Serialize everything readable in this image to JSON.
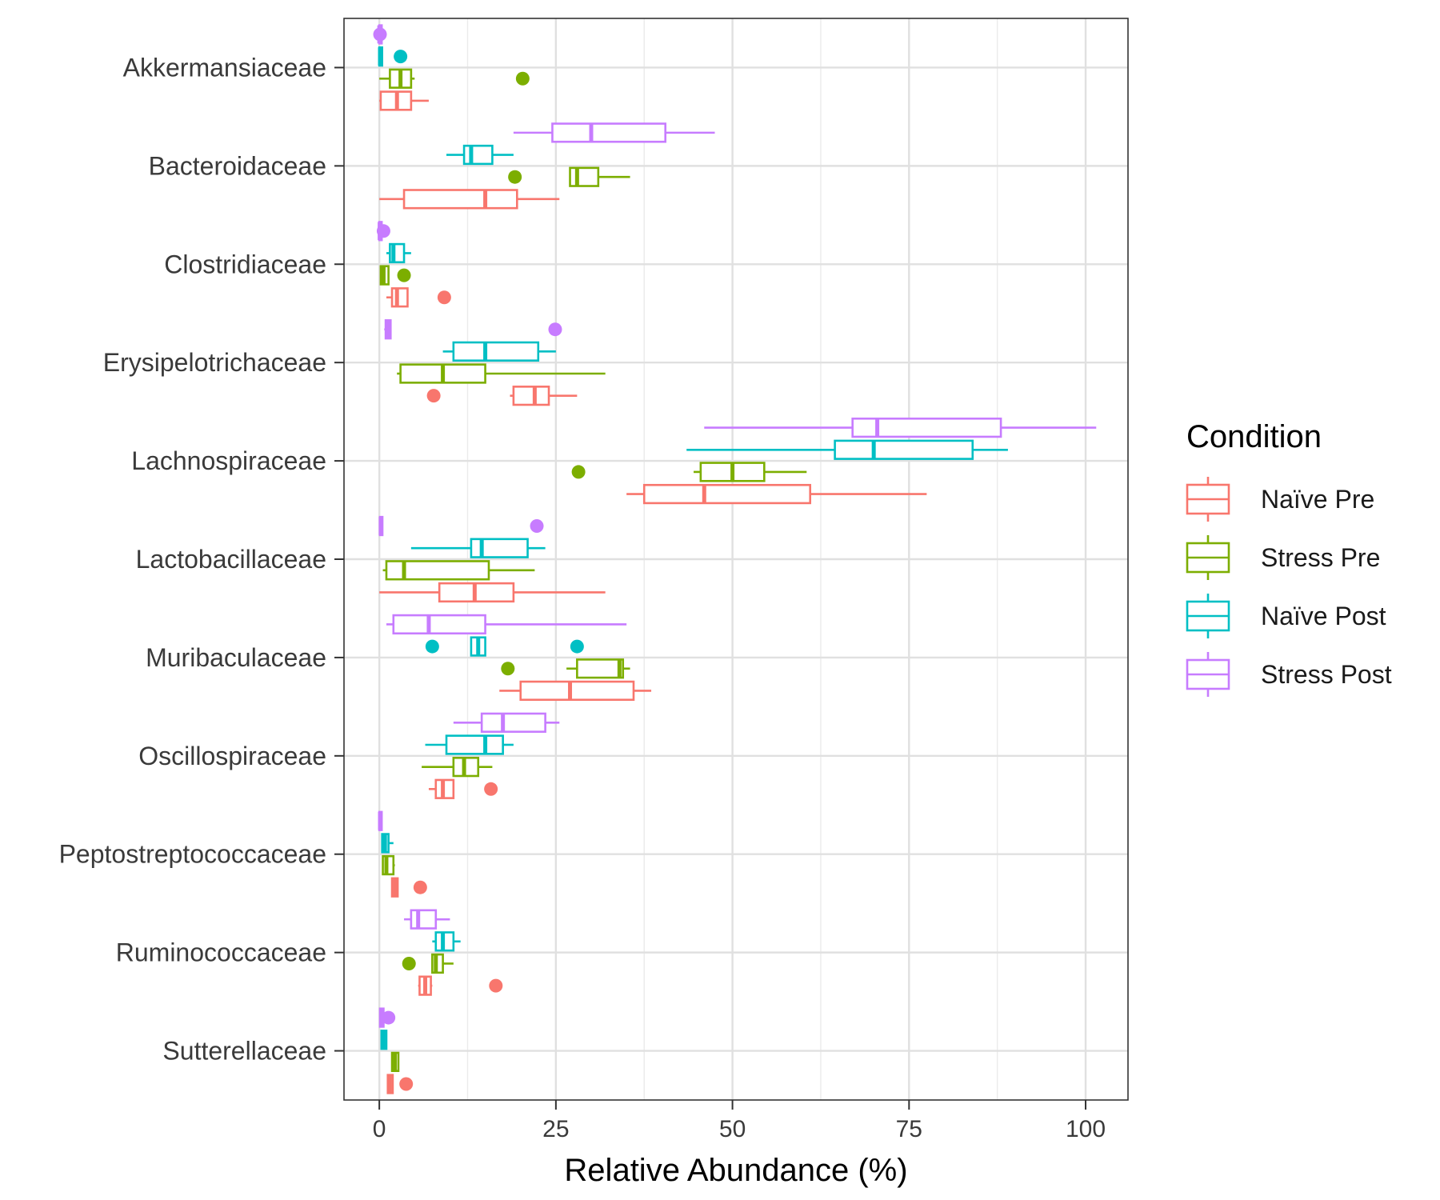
{
  "chart_data": {
    "type": "boxplot",
    "orientation": "horizontal",
    "xlabel": "Relative Abundance (%)",
    "ylabel": "",
    "xlim": [
      -5,
      106
    ],
    "xticks": [
      0,
      25,
      50,
      75,
      100
    ],
    "grid": true,
    "legend": {
      "title": "Condition",
      "position": "right"
    },
    "categories": [
      "Akkermansiaceae",
      "Bacteroidaceae",
      "Clostridiaceae",
      "Erysipelotrichaceae",
      "Lachnospiraceae",
      "Lactobacillaceae",
      "Muribaculaceae",
      "Oscillospiraceae",
      "Peptostreptococcaceae",
      "Ruminococcaceae",
      "Sutterellaceae"
    ],
    "series": [
      {
        "name": "Naïve Pre",
        "color": "#F8766D",
        "boxes": [
          {
            "category": "Akkermansiaceae",
            "whisker_low": 0,
            "q1": 0.2,
            "median": 2.5,
            "q3": 4.5,
            "whisker_high": 7,
            "outliers": []
          },
          {
            "category": "Bacteroidaceae",
            "whisker_low": 0,
            "q1": 3.5,
            "median": 15,
            "q3": 19.5,
            "whisker_high": 25.5,
            "outliers": []
          },
          {
            "category": "Clostridiaceae",
            "whisker_low": 1,
            "q1": 1.8,
            "median": 2.5,
            "q3": 4,
            "whisker_high": 4,
            "outliers": [
              9.2
            ]
          },
          {
            "category": "Erysipelotrichaceae",
            "whisker_low": 18.5,
            "q1": 19,
            "median": 22,
            "q3": 24,
            "whisker_high": 28,
            "outliers": [
              7.7
            ]
          },
          {
            "category": "Lachnospiraceae",
            "whisker_low": 35,
            "q1": 37.5,
            "median": 46,
            "q3": 61,
            "whisker_high": 77.5,
            "outliers": []
          },
          {
            "category": "Lactobacillaceae",
            "whisker_low": 0,
            "q1": 8.5,
            "median": 13.5,
            "q3": 19,
            "whisker_high": 32,
            "outliers": []
          },
          {
            "category": "Muribaculaceae",
            "whisker_low": 17,
            "q1": 20,
            "median": 27,
            "q3": 36,
            "whisker_high": 38.5,
            "outliers": []
          },
          {
            "category": "Oscillospiraceae",
            "whisker_low": 7,
            "q1": 8,
            "median": 9,
            "q3": 10.5,
            "whisker_high": 10.5,
            "outliers": [
              15.8
            ]
          },
          {
            "category": "Peptostreptococcaceae",
            "whisker_low": 1.8,
            "q1": 1.8,
            "median": 2.2,
            "q3": 2.6,
            "whisker_high": 2.6,
            "outliers": [
              5.8
            ]
          },
          {
            "category": "Ruminococcaceae",
            "whisker_low": 5.5,
            "q1": 5.7,
            "median": 6.5,
            "q3": 7.3,
            "whisker_high": 7.5,
            "outliers": [
              16.5
            ]
          },
          {
            "category": "Sutterellaceae",
            "whisker_low": 1.2,
            "q1": 1.2,
            "median": 1.5,
            "q3": 1.9,
            "whisker_high": 1.9,
            "outliers": [
              3.8
            ]
          }
        ]
      },
      {
        "name": "Stress Pre",
        "color": "#7CAE00",
        "boxes": [
          {
            "category": "Akkermansiaceae",
            "whisker_low": 0,
            "q1": 1.5,
            "median": 3,
            "q3": 4.5,
            "whisker_high": 5,
            "outliers": [
              20.3
            ]
          },
          {
            "category": "Bacteroidaceae",
            "whisker_low": 27,
            "q1": 27,
            "median": 28,
            "q3": 31,
            "whisker_high": 35.5,
            "outliers": [
              19.2
            ]
          },
          {
            "category": "Clostridiaceae",
            "whisker_low": 0.2,
            "q1": 0.2,
            "median": 0.6,
            "q3": 1.3,
            "whisker_high": 1.3,
            "outliers": [
              3.5
            ]
          },
          {
            "category": "Erysipelotrichaceae",
            "whisker_low": 2.5,
            "q1": 3,
            "median": 9,
            "q3": 15,
            "whisker_high": 32,
            "outliers": []
          },
          {
            "category": "Lachnospiraceae",
            "whisker_low": 44.5,
            "q1": 45.5,
            "median": 50,
            "q3": 54.5,
            "whisker_high": 60.5,
            "outliers": [
              28.2
            ]
          },
          {
            "category": "Lactobacillaceae",
            "whisker_low": 0.5,
            "q1": 1,
            "median": 3.5,
            "q3": 15.5,
            "whisker_high": 22,
            "outliers": []
          },
          {
            "category": "Muribaculaceae",
            "whisker_low": 26.5,
            "q1": 28,
            "median": 34,
            "q3": 34.5,
            "whisker_high": 35.5,
            "outliers": [
              18.2
            ]
          },
          {
            "category": "Oscillospiraceae",
            "whisker_low": 6,
            "q1": 10.5,
            "median": 12,
            "q3": 14,
            "whisker_high": 16,
            "outliers": []
          },
          {
            "category": "Peptostreptococcaceae",
            "whisker_low": 0.5,
            "q1": 0.5,
            "median": 1,
            "q3": 2,
            "whisker_high": 2.2,
            "outliers": []
          },
          {
            "category": "Ruminococcaceae",
            "whisker_low": 7.5,
            "q1": 7.5,
            "median": 8,
            "q3": 9,
            "whisker_high": 10.5,
            "outliers": [
              4.2
            ]
          },
          {
            "category": "Sutterellaceae",
            "whisker_low": 1.8,
            "q1": 1.8,
            "median": 2.2,
            "q3": 2.7,
            "whisker_high": 2.7,
            "outliers": []
          }
        ]
      },
      {
        "name": "Naïve Post",
        "color": "#00BFC4",
        "boxes": [
          {
            "category": "Akkermansiaceae",
            "whisker_low": 0,
            "q1": 0,
            "median": 0.1,
            "q3": 0.4,
            "whisker_high": 0.4,
            "outliers": [
              3
            ]
          },
          {
            "category": "Bacteroidaceae",
            "whisker_low": 9.5,
            "q1": 12,
            "median": 13,
            "q3": 16,
            "whisker_high": 19,
            "outliers": []
          },
          {
            "category": "Clostridiaceae",
            "whisker_low": 1,
            "q1": 1.5,
            "median": 2,
            "q3": 3.5,
            "whisker_high": 4.5,
            "outliers": []
          },
          {
            "category": "Erysipelotrichaceae",
            "whisker_low": 9,
            "q1": 10.5,
            "median": 15,
            "q3": 22.5,
            "whisker_high": 25,
            "outliers": []
          },
          {
            "category": "Lachnospiraceae",
            "whisker_low": 43.5,
            "q1": 64.5,
            "median": 70,
            "q3": 84,
            "whisker_high": 89,
            "outliers": []
          },
          {
            "category": "Lactobacillaceae",
            "whisker_low": 4.5,
            "q1": 13,
            "median": 14.5,
            "q3": 21,
            "whisker_high": 23.5,
            "outliers": []
          },
          {
            "category": "Muribaculaceae",
            "whisker_low": 13,
            "q1": 13,
            "median": 14,
            "q3": 15,
            "whisker_high": 15,
            "outliers": [
              7.5,
              28
            ]
          },
          {
            "category": "Oscillospiraceae",
            "whisker_low": 6.5,
            "q1": 9.5,
            "median": 15,
            "q3": 17.5,
            "whisker_high": 19,
            "outliers": []
          },
          {
            "category": "Peptostreptococcaceae",
            "whisker_low": 0.4,
            "q1": 0.4,
            "median": 0.8,
            "q3": 1.3,
            "whisker_high": 2,
            "outliers": []
          },
          {
            "category": "Ruminococcaceae",
            "whisker_low": 7.5,
            "q1": 8,
            "median": 9,
            "q3": 10.5,
            "whisker_high": 11.5,
            "outliers": []
          },
          {
            "category": "Sutterellaceae",
            "whisker_low": 0.3,
            "q1": 0.3,
            "median": 0.6,
            "q3": 1,
            "whisker_high": 1,
            "outliers": []
          }
        ]
      },
      {
        "name": "Stress Post",
        "color": "#C77CFF",
        "boxes": [
          {
            "category": "Akkermansiaceae",
            "whisker_low": 0,
            "q1": 0,
            "median": 0,
            "q3": 0.1,
            "whisker_high": 0.1,
            "outliers": [
              0.1
            ]
          },
          {
            "category": "Bacteroidaceae",
            "whisker_low": 19,
            "q1": 24.5,
            "median": 30,
            "q3": 40.5,
            "whisker_high": 47.5,
            "outliers": []
          },
          {
            "category": "Clostridiaceae",
            "whisker_low": 0,
            "q1": 0,
            "median": 0.05,
            "q3": 0.1,
            "whisker_high": 0.1,
            "outliers": [
              0.6
            ]
          },
          {
            "category": "Erysipelotrichaceae",
            "whisker_low": 0.7,
            "q1": 0.9,
            "median": 1.2,
            "q3": 1.6,
            "whisker_high": 1.6,
            "outliers": [
              24.9
            ]
          },
          {
            "category": "Lachnospiraceae",
            "whisker_low": 46,
            "q1": 67,
            "median": 70.5,
            "q3": 88,
            "whisker_high": 101.5,
            "outliers": []
          },
          {
            "category": "Lactobacillaceae",
            "whisker_low": 0.1,
            "q1": 0.1,
            "median": 0.2,
            "q3": 0.4,
            "whisker_high": 0.4,
            "outliers": [
              22.3
            ]
          },
          {
            "category": "Muribaculaceae",
            "whisker_low": 1,
            "q1": 2,
            "median": 7,
            "q3": 15,
            "whisker_high": 35,
            "outliers": []
          },
          {
            "category": "Oscillospiraceae",
            "whisker_low": 10.5,
            "q1": 14.5,
            "median": 17.5,
            "q3": 23.5,
            "whisker_high": 25.5,
            "outliers": []
          },
          {
            "category": "Peptostreptococcaceae",
            "whisker_low": 0,
            "q1": 0,
            "median": 0.1,
            "q3": 0.2,
            "whisker_high": 0.2,
            "outliers": []
          },
          {
            "category": "Ruminococcaceae",
            "whisker_low": 3.5,
            "q1": 4.5,
            "median": 5.5,
            "q3": 8,
            "whisker_high": 10,
            "outliers": []
          },
          {
            "category": "Sutterellaceae",
            "whisker_low": 0.1,
            "q1": 0.1,
            "median": 0.3,
            "q3": 0.6,
            "whisker_high": 0.6,
            "outliers": [
              1.3
            ]
          }
        ]
      }
    ]
  }
}
